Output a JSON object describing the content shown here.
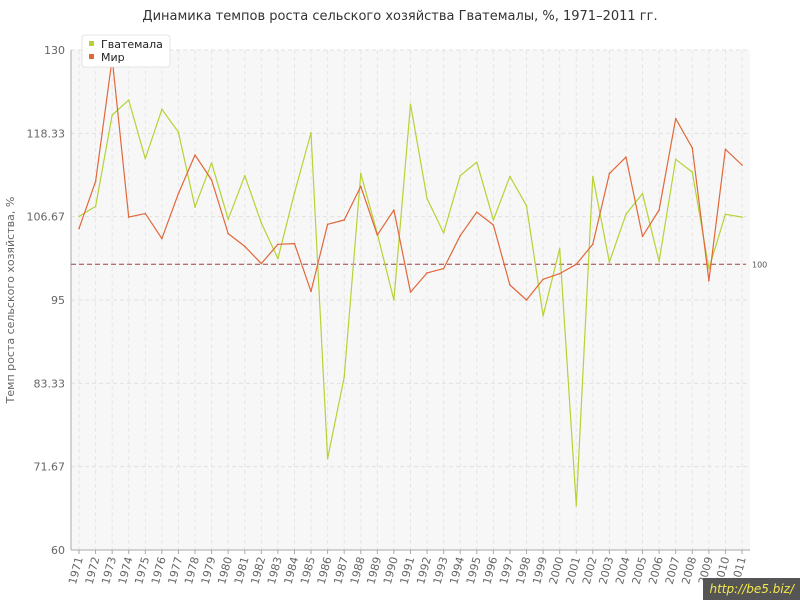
{
  "chart_data": {
    "type": "line",
    "title": "Динамика темпов роста сельского хозяйства Гватемалы, %, 1971–2011 гг.",
    "ylabel": "Темп роста сельского хозяйства, %",
    "xlabel": "",
    "ylim": [
      60,
      130
    ],
    "yticks": [
      60,
      71.67,
      83.33,
      95,
      106.67,
      118.33,
      130
    ],
    "ytick_labels": [
      "60",
      "71.67",
      "83.33",
      "95",
      "106.67",
      "118.33",
      "130"
    ],
    "x": [
      "1971",
      "1972",
      "1973",
      "1974",
      "1975",
      "1976",
      "1977",
      "1978",
      "1979",
      "1980",
      "1981",
      "1982",
      "1983",
      "1984",
      "1985",
      "1986",
      "1987",
      "1988",
      "1989",
      "1990",
      "1991",
      "1992",
      "1993",
      "1994",
      "1995",
      "1996",
      "1997",
      "1998",
      "1999",
      "2000",
      "2001",
      "2002",
      "2003",
      "2004",
      "2005",
      "2006",
      "2007",
      "2008",
      "2009",
      "2010",
      "2011"
    ],
    "series": [
      {
        "name": "Гватемала",
        "color": "#b5d335",
        "values": [
          106.7,
          108.1,
          120.9,
          123,
          114.8,
          121.7,
          118.5,
          108,
          114.2,
          106.3,
          112.4,
          105.8,
          100.8,
          110,
          118.4,
          72.8,
          84.2,
          112.7,
          104.3,
          95,
          122.4,
          109.2,
          104.4,
          112.4,
          114.3,
          106.2,
          112.3,
          108.2,
          92.8,
          102.2,
          66.2,
          112.3,
          100.3,
          107,
          109.9,
          100.4,
          114.7,
          112.9,
          99.4,
          107,
          106.6
        ]
      },
      {
        "name": "Мир",
        "color": "#e0683a",
        "values": [
          105,
          111.6,
          128.8,
          106.6,
          107.1,
          103.6,
          109.9,
          115.3,
          111.8,
          104.3,
          102.5,
          100.1,
          102.8,
          102.9,
          96.2,
          105.6,
          106.2,
          110.9,
          104.1,
          107.6,
          96.1,
          98.8,
          99.4,
          104,
          107.3,
          105.5,
          97.1,
          95,
          97.9,
          98.7,
          100,
          102.8,
          112.7,
          115,
          103.9,
          107.6,
          120.4,
          116.3,
          97.7,
          116.1,
          113.9
        ]
      }
    ],
    "reference_line": {
      "value": 100,
      "label": "100",
      "color": "#a04040"
    },
    "legend_position": "top-left",
    "grid": true
  },
  "watermark": "http://be5.biz/"
}
